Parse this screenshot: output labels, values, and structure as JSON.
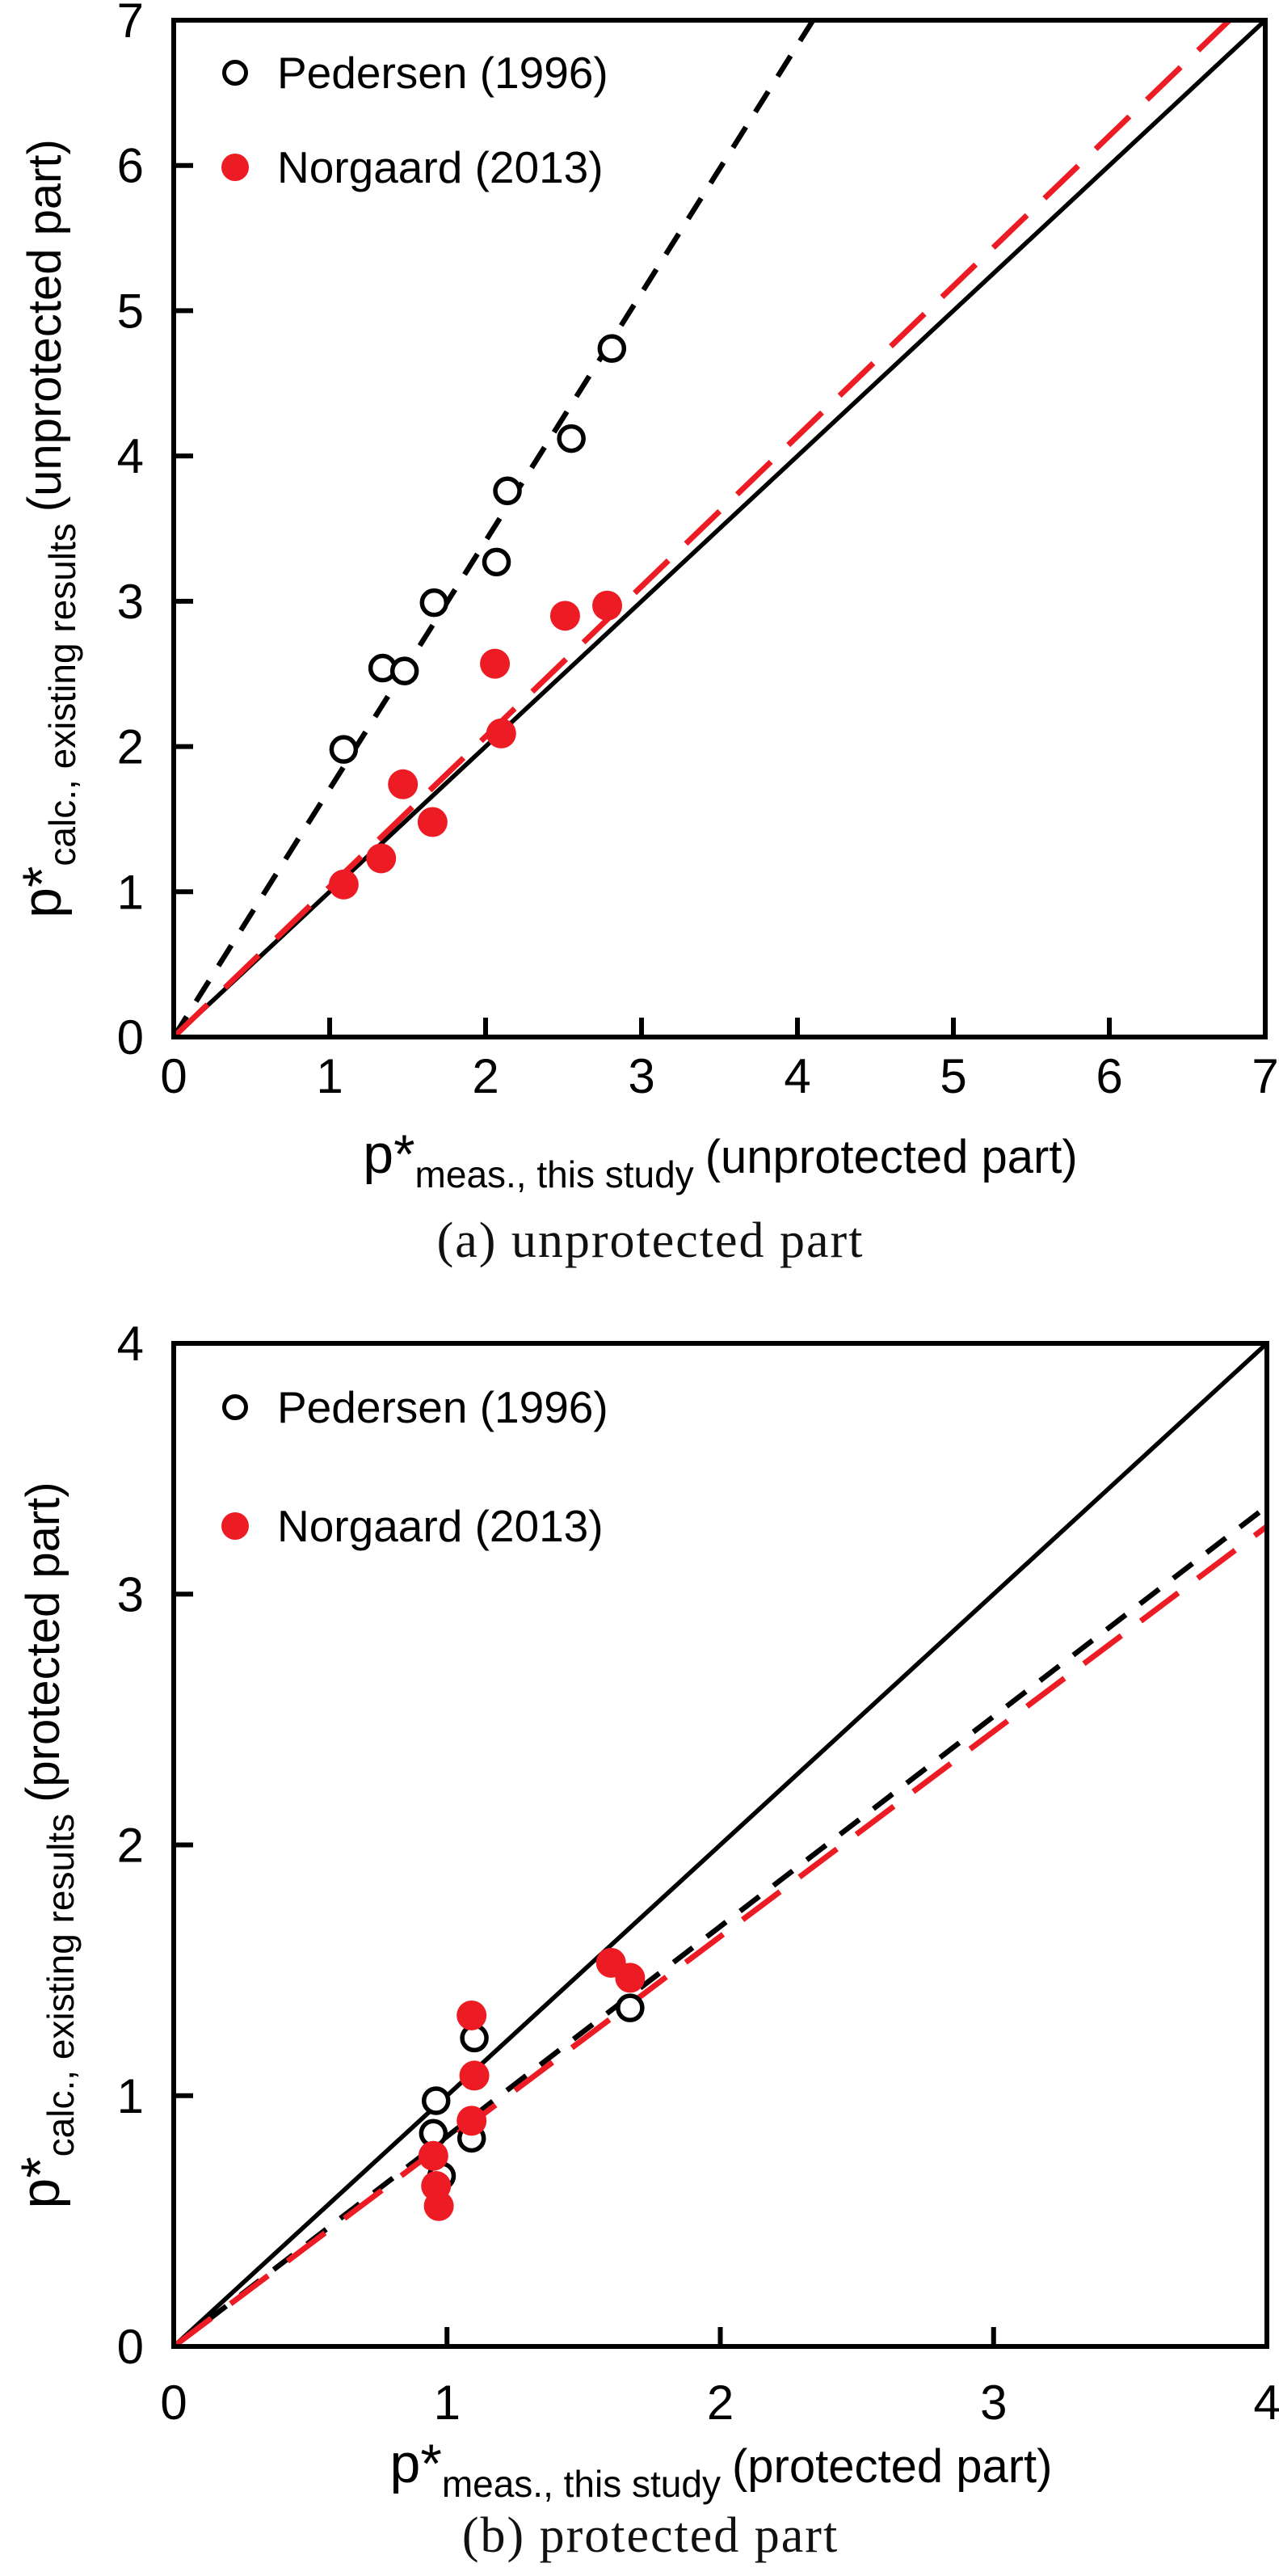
{
  "page": {
    "background": "#ffffff"
  },
  "colors": {
    "norgaard_red": "#ed1c24",
    "black": "#000000",
    "marker_fill_open": "#ffffff"
  },
  "chart_data": [
    {
      "id": "a",
      "type": "scatter",
      "caption": "(a) unprotected part",
      "xlabel": {
        "main": "p*",
        "sub": "meas., this study",
        "rest": "(unprotected part)"
      },
      "ylabel": {
        "main": "p*",
        "sub": "calc., existing results",
        "rest": "(unprotected part)"
      },
      "xlim": [
        0,
        7
      ],
      "ylim": [
        0,
        7
      ],
      "xticks": [
        0,
        1,
        2,
        3,
        4,
        5,
        6,
        7
      ],
      "yticks": [
        0,
        1,
        2,
        3,
        4,
        5,
        6,
        7
      ],
      "grid": false,
      "legend": {
        "position": "top-left",
        "entries": [
          {
            "label": "Pedersen (1996)",
            "marker": "open-circle",
            "color": "#000000"
          },
          {
            "label": "Norgaard (2013)",
            "marker": "filled-circle",
            "color": "#ed1c24"
          }
        ]
      },
      "series": [
        {
          "name": "Pedersen (1996)",
          "marker": "open-circle",
          "color": "#000000",
          "points": [
            [
              1.09,
              1.98
            ],
            [
              1.34,
              2.54
            ],
            [
              1.48,
              2.52
            ],
            [
              1.67,
              2.99
            ],
            [
              2.07,
              3.27
            ],
            [
              2.14,
              3.76
            ],
            [
              2.55,
              4.12
            ],
            [
              2.81,
              4.74
            ]
          ]
        },
        {
          "name": "Norgaard (2013)",
          "marker": "filled-circle",
          "color": "#ed1c24",
          "points": [
            [
              1.09,
              1.05
            ],
            [
              1.33,
              1.23
            ],
            [
              1.47,
              1.74
            ],
            [
              1.66,
              1.48
            ],
            [
              2.06,
              2.57
            ],
            [
              2.1,
              2.09
            ],
            [
              2.51,
              2.9
            ],
            [
              2.78,
              2.97
            ]
          ]
        }
      ],
      "lines": [
        {
          "name": "identity-line-a",
          "style": "solid",
          "color": "#000000",
          "x": [
            0,
            7
          ],
          "y": [
            0,
            7
          ]
        },
        {
          "name": "pedersen-trend-line-a",
          "style": "short-dash",
          "color": "#000000",
          "x": [
            0,
            4.1
          ],
          "y": [
            0,
            7
          ]
        },
        {
          "name": "norgaard-trend-line-a",
          "style": "long-dash",
          "color": "#ed1c24",
          "x": [
            0,
            6.77
          ],
          "y": [
            0,
            7
          ]
        }
      ]
    },
    {
      "id": "b",
      "type": "scatter",
      "caption": "(b) protected part",
      "xlabel": {
        "main": "p*",
        "sub": "meas., this study",
        "rest": "(protected part)"
      },
      "ylabel": {
        "main": "p*",
        "sub": "calc., existing results",
        "rest": "(protected part)"
      },
      "xlim": [
        0,
        4
      ],
      "ylim": [
        0,
        4
      ],
      "xticks": [
        0,
        1,
        2,
        3,
        4
      ],
      "yticks": [
        0,
        1,
        2,
        3,
        4
      ],
      "grid": false,
      "legend": {
        "position": "top-left",
        "entries": [
          {
            "label": "Pedersen (1996)",
            "marker": "open-circle",
            "color": "#000000"
          },
          {
            "label": "Norgaard (2013)",
            "marker": "filled-circle",
            "color": "#ed1c24"
          }
        ]
      },
      "series": [
        {
          "name": "Pedersen (1996)",
          "marker": "open-circle",
          "color": "#000000",
          "points": [
            [
              0.95,
              0.85
            ],
            [
              0.96,
              0.98
            ],
            [
              0.98,
              0.68
            ],
            [
              1.09,
              0.83
            ],
            [
              1.1,
              1.23
            ],
            [
              1.67,
              1.35
            ]
          ]
        },
        {
          "name": "Norgaard (2013)",
          "marker": "filled-circle",
          "color": "#ed1c24",
          "points": [
            [
              0.95,
              0.76
            ],
            [
              0.96,
              0.64
            ],
            [
              0.97,
              0.56
            ],
            [
              1.09,
              0.9
            ],
            [
              1.09,
              1.32
            ],
            [
              1.1,
              1.08
            ],
            [
              1.6,
              1.53
            ],
            [
              1.67,
              1.47
            ]
          ]
        }
      ],
      "lines": [
        {
          "name": "identity-line-b",
          "style": "solid",
          "color": "#000000",
          "x": [
            0,
            4
          ],
          "y": [
            0,
            4
          ]
        },
        {
          "name": "pedersen-trend-line-b",
          "style": "short-dash",
          "color": "#000000",
          "x": [
            0,
            4
          ],
          "y": [
            0,
            3.35
          ]
        },
        {
          "name": "norgaard-trend-line-b",
          "style": "long-dash",
          "color": "#ed1c24",
          "x": [
            0,
            4
          ],
          "y": [
            0,
            3.27
          ]
        }
      ]
    }
  ]
}
